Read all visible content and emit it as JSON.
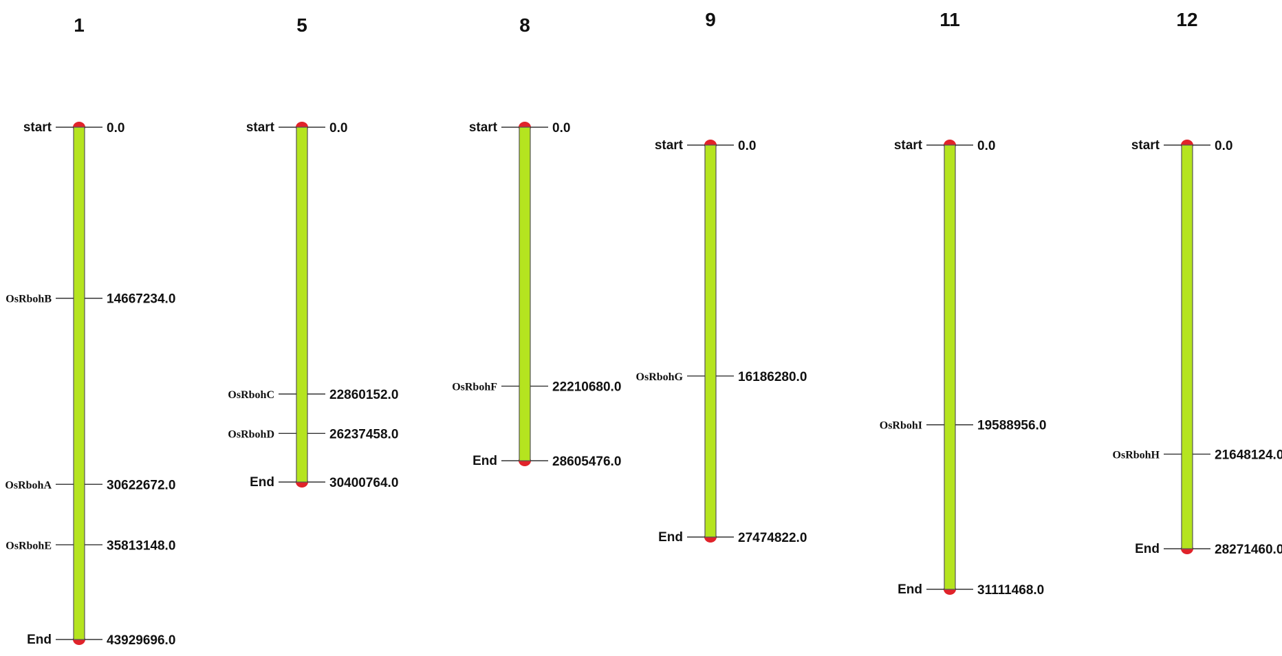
{
  "colors": {
    "chromosome_fill": "#b5e41f",
    "chromosome_stroke": "#555555",
    "cap": "#e0232a",
    "tick": "#333333"
  },
  "start_label": "start",
  "end_label": "End",
  "chromosomes": [
    {
      "number": "1",
      "start_value": "0.0",
      "end_value": "43929696.0",
      "length": 43929696,
      "genes": [
        {
          "name": "OsRbohB",
          "position": 14667234,
          "value": "14667234.0"
        },
        {
          "name": "OsRbohA",
          "position": 30622672,
          "value": "30622672.0"
        },
        {
          "name": "OsRbohE",
          "position": 35813148,
          "value": "35813148.0"
        }
      ]
    },
    {
      "number": "5",
      "start_value": "0.0",
      "end_value": "30400764.0",
      "length": 30400764,
      "genes": [
        {
          "name": "OsRbohC",
          "position": 22860152,
          "value": "22860152.0"
        },
        {
          "name": "OsRbohD",
          "position": 26237458,
          "value": "26237458.0"
        }
      ]
    },
    {
      "number": "8",
      "start_value": "0.0",
      "end_value": "28605476.0",
      "length": 28605476,
      "genes": [
        {
          "name": "OsRbohF",
          "position": 22210680,
          "value": "22210680.0"
        }
      ]
    },
    {
      "number": "9",
      "start_value": "0.0",
      "end_value": "27474822.0",
      "length": 27474822,
      "genes": [
        {
          "name": "OsRbohG",
          "position": 16186280,
          "value": "16186280.0"
        }
      ]
    },
    {
      "number": "11",
      "start_value": "0.0",
      "end_value": "31111468.0",
      "length": 31111468,
      "genes": [
        {
          "name": "OsRbohI",
          "position": 19588956,
          "value": "19588956.0"
        }
      ]
    },
    {
      "number": "12",
      "start_value": "0.0",
      "end_value": "28271460.0",
      "length": 28271460,
      "genes": [
        {
          "name": "OsRbohH",
          "position": 21648124,
          "value": "21648124.0"
        }
      ]
    }
  ]
}
